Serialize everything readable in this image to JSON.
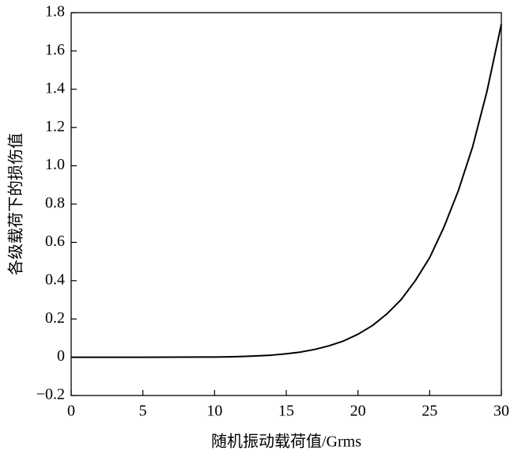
{
  "chart_data": {
    "type": "line",
    "x_label": "随机振动载荷值/Grms",
    "y_label": "各级载荷下的损伤值",
    "x": [
      0,
      5,
      10,
      11,
      12,
      13,
      14,
      15,
      16,
      17,
      18,
      19,
      20,
      21,
      22,
      23,
      24,
      25,
      26,
      27,
      28,
      29,
      30
    ],
    "series": [
      {
        "color": "#000000",
        "values": [
          0,
          0,
          0.001,
          0.002,
          0.004,
          0.007,
          0.011,
          0.018,
          0.027,
          0.041,
          0.06,
          0.085,
          0.12,
          0.165,
          0.225,
          0.3,
          0.4,
          0.52,
          0.68,
          0.87,
          1.1,
          1.39,
          1.74
        ]
      }
    ],
    "xlim": [
      0,
      30
    ],
    "xticks": [
      0,
      5,
      10,
      15,
      20,
      25,
      30
    ],
    "ylim": [
      -0.2,
      1.8
    ],
    "yticks": [
      {
        "value": -0.2,
        "label": "−0.2"
      },
      0,
      0.2,
      0.4,
      0.6,
      0.8,
      {
        "value": 1,
        "label": "1.0"
      },
      1.2,
      1.4,
      1.6,
      1.8
    ]
  }
}
